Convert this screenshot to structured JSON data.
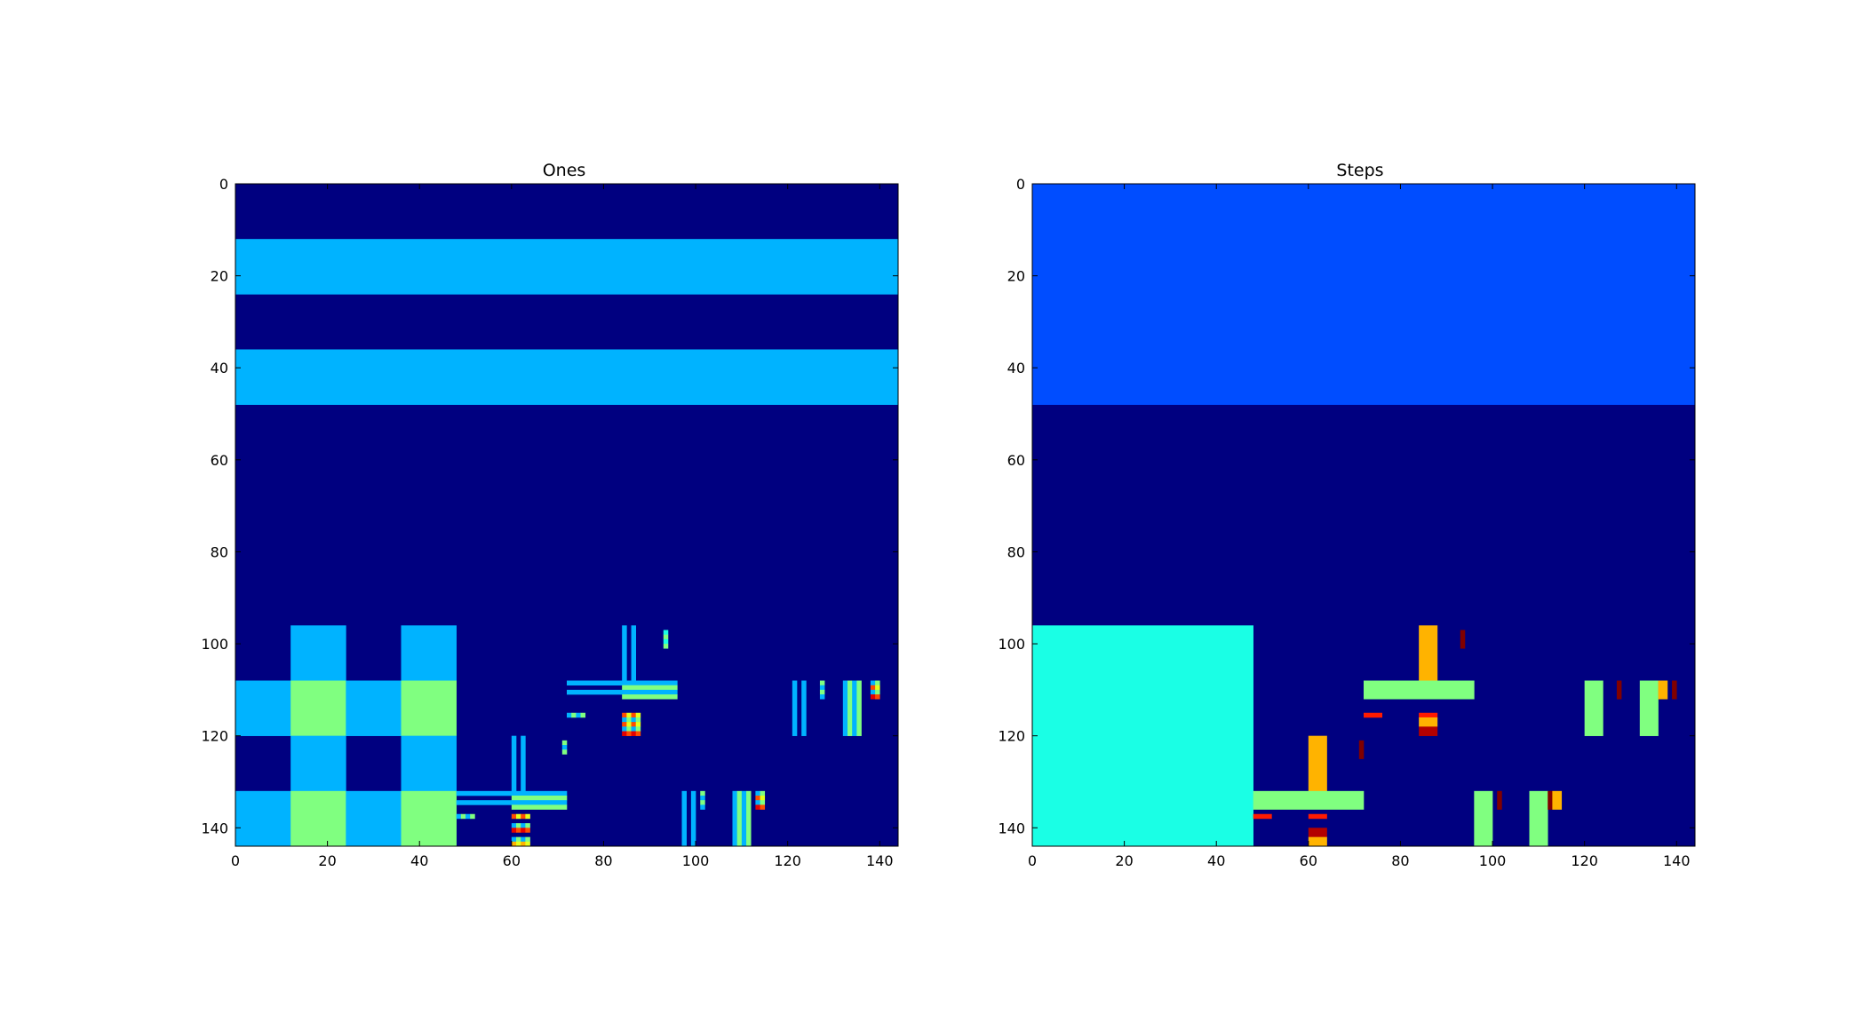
{
  "chart_data": [
    {
      "type": "heatmap",
      "title": "Ones",
      "colormap": "jet",
      "clim": [
        0,
        10
      ],
      "xlim": [
        0,
        144
      ],
      "ylim": [
        144,
        0
      ],
      "xticks": [
        "0",
        "20",
        "40",
        "60",
        "80",
        "100",
        "120",
        "140"
      ],
      "yticks": [
        "0",
        "20",
        "40",
        "60",
        "80",
        "100",
        "120",
        "140"
      ],
      "background_value": 0,
      "cells": [
        [
          0,
          12,
          144,
          12,
          3
        ],
        [
          0,
          36,
          144,
          12,
          3
        ],
        [
          12,
          96,
          12,
          12,
          3
        ],
        [
          36,
          96,
          12,
          12,
          3
        ],
        [
          0,
          108,
          12,
          12,
          3
        ],
        [
          12,
          108,
          12,
          12,
          5
        ],
        [
          24,
          108,
          12,
          12,
          3
        ],
        [
          36,
          108,
          12,
          12,
          5
        ],
        [
          12,
          120,
          12,
          12,
          3
        ],
        [
          36,
          120,
          12,
          12,
          3
        ],
        [
          0,
          132,
          12,
          12,
          3
        ],
        [
          12,
          132,
          12,
          12,
          5
        ],
        [
          24,
          132,
          12,
          12,
          3
        ],
        [
          36,
          132,
          12,
          12,
          5
        ],
        [
          84,
          96,
          1,
          12,
          3
        ],
        [
          86,
          96,
          1,
          12,
          3
        ],
        [
          93,
          97,
          1,
          1,
          4
        ],
        [
          93,
          98,
          1,
          1,
          5
        ],
        [
          93,
          99,
          1,
          1,
          4
        ],
        [
          93,
          100,
          1,
          1,
          5
        ],
        [
          72,
          108,
          12,
          1,
          3
        ],
        [
          72,
          110,
          12,
          1,
          3
        ],
        [
          84,
          108,
          12,
          1,
          3
        ],
        [
          84,
          109,
          12,
          1,
          5
        ],
        [
          84,
          110,
          12,
          1,
          3
        ],
        [
          84,
          111,
          12,
          1,
          5
        ],
        [
          72,
          115,
          1,
          1,
          3
        ],
        [
          73,
          115,
          1,
          1,
          5
        ],
        [
          74,
          115,
          1,
          1,
          3
        ],
        [
          75,
          115,
          1,
          1,
          5
        ],
        [
          84,
          115,
          1,
          1,
          8
        ],
        [
          85,
          115,
          1,
          1,
          6
        ],
        [
          86,
          115,
          1,
          1,
          8
        ],
        [
          87,
          115,
          1,
          1,
          6
        ],
        [
          84,
          116,
          1,
          1,
          3
        ],
        [
          85,
          116,
          1,
          1,
          5
        ],
        [
          86,
          116,
          1,
          1,
          3
        ],
        [
          87,
          116,
          1,
          1,
          5
        ],
        [
          84,
          117,
          1,
          1,
          8
        ],
        [
          85,
          117,
          1,
          1,
          6
        ],
        [
          86,
          117,
          1,
          1,
          8
        ],
        [
          87,
          117,
          1,
          1,
          6
        ],
        [
          84,
          118,
          1,
          1,
          3
        ],
        [
          85,
          118,
          1,
          1,
          5
        ],
        [
          86,
          118,
          1,
          1,
          3
        ],
        [
          87,
          118,
          1,
          1,
          5
        ],
        [
          84,
          119,
          1,
          1,
          9
        ],
        [
          85,
          119,
          1,
          1,
          8
        ],
        [
          86,
          119,
          1,
          1,
          9
        ],
        [
          87,
          119,
          1,
          1,
          8
        ],
        [
          60,
          120,
          1,
          12,
          3
        ],
        [
          62,
          120,
          1,
          12,
          3
        ],
        [
          71,
          121,
          1,
          1,
          5
        ],
        [
          71,
          122,
          1,
          1,
          3
        ],
        [
          71,
          123,
          1,
          1,
          5
        ],
        [
          48,
          132,
          12,
          1,
          3
        ],
        [
          48,
          134,
          12,
          1,
          3
        ],
        [
          60,
          132,
          12,
          1,
          3
        ],
        [
          60,
          133,
          12,
          1,
          5
        ],
        [
          60,
          134,
          12,
          1,
          3
        ],
        [
          60,
          135,
          12,
          1,
          5
        ],
        [
          48,
          137,
          1,
          1,
          3
        ],
        [
          49,
          137,
          1,
          1,
          5
        ],
        [
          50,
          137,
          1,
          1,
          3
        ],
        [
          51,
          137,
          1,
          1,
          5
        ],
        [
          60,
          137,
          1,
          1,
          8
        ],
        [
          61,
          137,
          1,
          1,
          6
        ],
        [
          62,
          137,
          1,
          1,
          8
        ],
        [
          63,
          137,
          1,
          1,
          6
        ],
        [
          60,
          139,
          1,
          1,
          3
        ],
        [
          61,
          139,
          1,
          1,
          5
        ],
        [
          62,
          139,
          1,
          1,
          3
        ],
        [
          63,
          139,
          1,
          1,
          5
        ],
        [
          60,
          140,
          1,
          1,
          9
        ],
        [
          61,
          140,
          1,
          1,
          8
        ],
        [
          62,
          140,
          1,
          1,
          9
        ],
        [
          63,
          140,
          1,
          1,
          8
        ],
        [
          60,
          142,
          1,
          1,
          3
        ],
        [
          61,
          142,
          1,
          1,
          5
        ],
        [
          62,
          142,
          1,
          1,
          3
        ],
        [
          63,
          142,
          1,
          1,
          5
        ],
        [
          60,
          143,
          1,
          1,
          7
        ],
        [
          61,
          143,
          1,
          1,
          6
        ],
        [
          62,
          143,
          1,
          1,
          7
        ],
        [
          63,
          143,
          1,
          1,
          6
        ],
        [
          121,
          108,
          1,
          12,
          3
        ],
        [
          123,
          108,
          1,
          12,
          3
        ],
        [
          127,
          108,
          1,
          1,
          5
        ],
        [
          127,
          109,
          1,
          1,
          3
        ],
        [
          127,
          110,
          1,
          1,
          5
        ],
        [
          127,
          111,
          1,
          1,
          3
        ],
        [
          132,
          108,
          1,
          12,
          3
        ],
        [
          133,
          108,
          1,
          12,
          5
        ],
        [
          134,
          108,
          1,
          12,
          3
        ],
        [
          135,
          108,
          1,
          12,
          5
        ],
        [
          138,
          108,
          1,
          1,
          3
        ],
        [
          139,
          108,
          1,
          1,
          5
        ],
        [
          138,
          109,
          1,
          1,
          8
        ],
        [
          139,
          109,
          1,
          1,
          6
        ],
        [
          138,
          110,
          1,
          1,
          3
        ],
        [
          139,
          110,
          1,
          1,
          5
        ],
        [
          138,
          111,
          1,
          1,
          9
        ],
        [
          139,
          111,
          1,
          1,
          8
        ],
        [
          97,
          132,
          1,
          12,
          3
        ],
        [
          99,
          132,
          1,
          12,
          3
        ],
        [
          101,
          132,
          1,
          1,
          5
        ],
        [
          101,
          133,
          1,
          1,
          3
        ],
        [
          101,
          134,
          1,
          1,
          5
        ],
        [
          101,
          135,
          1,
          1,
          3
        ],
        [
          108,
          132,
          1,
          12,
          3
        ],
        [
          109,
          132,
          1,
          12,
          5
        ],
        [
          110,
          132,
          1,
          12,
          3
        ],
        [
          111,
          132,
          1,
          12,
          5
        ],
        [
          113,
          132,
          1,
          1,
          3
        ],
        [
          114,
          132,
          1,
          1,
          5
        ],
        [
          113,
          133,
          1,
          1,
          8
        ],
        [
          114,
          133,
          1,
          1,
          6
        ],
        [
          113,
          134,
          1,
          1,
          3
        ],
        [
          114,
          134,
          1,
          1,
          5
        ],
        [
          113,
          135,
          1,
          1,
          9
        ],
        [
          114,
          135,
          1,
          1,
          8
        ]
      ]
    },
    {
      "type": "heatmap",
      "title": "Steps",
      "colormap": "jet",
      "clim": [
        0,
        10
      ],
      "xlim": [
        0,
        144
      ],
      "ylim": [
        144,
        0
      ],
      "xticks": [
        "0",
        "20",
        "40",
        "60",
        "80",
        "100",
        "120",
        "140"
      ],
      "yticks": [
        "0",
        "20",
        "40",
        "60",
        "80",
        "100",
        "120",
        "140"
      ],
      "background_value": 0,
      "cells": [
        [
          0,
          0,
          144,
          48,
          2
        ],
        [
          0,
          96,
          48,
          48,
          4
        ],
        [
          84,
          96,
          4,
          12,
          7
        ],
        [
          93,
          97,
          1,
          4,
          10
        ],
        [
          72,
          108,
          24,
          4,
          5
        ],
        [
          72,
          115,
          4,
          1,
          8.5
        ],
        [
          84,
          115,
          4,
          1,
          8.5
        ],
        [
          84,
          116,
          4,
          2,
          7
        ],
        [
          84,
          118,
          4,
          2,
          9.5
        ],
        [
          60,
          120,
          4,
          12,
          7
        ],
        [
          71,
          121,
          1,
          4,
          10
        ],
        [
          48,
          132,
          24,
          4,
          5
        ],
        [
          48,
          137,
          4,
          1,
          8.5
        ],
        [
          60,
          137,
          4,
          1,
          8.5
        ],
        [
          60,
          140,
          4,
          2,
          9.5
        ],
        [
          60,
          142,
          4,
          2,
          7
        ],
        [
          120,
          108,
          4,
          12,
          5
        ],
        [
          127,
          108,
          1,
          4,
          10
        ],
        [
          132,
          108,
          4,
          12,
          5
        ],
        [
          136,
          108,
          2,
          4,
          7
        ],
        [
          139,
          108,
          1,
          4,
          10
        ],
        [
          96,
          132,
          4,
          12,
          5
        ],
        [
          101,
          132,
          1,
          4,
          10
        ],
        [
          108,
          132,
          4,
          12,
          5
        ],
        [
          112,
          132,
          1,
          4,
          10
        ],
        [
          113,
          132,
          2,
          4,
          7
        ]
      ]
    }
  ]
}
